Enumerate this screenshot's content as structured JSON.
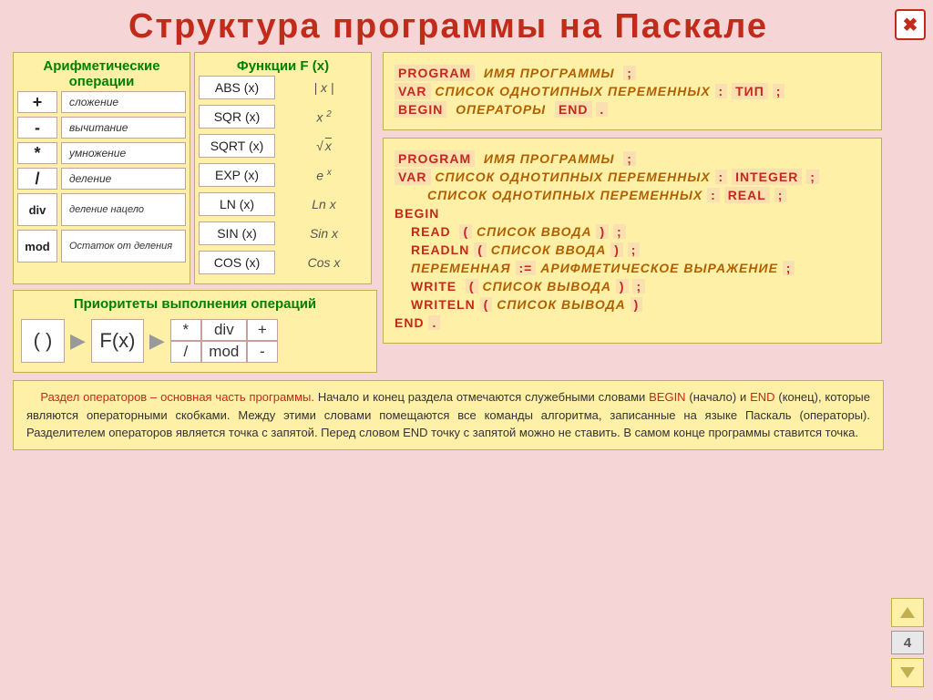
{
  "title": "Структура  программы  на  Паскале",
  "arith_head": "Арифметические операции",
  "funcs_head": "Функции  F (x)",
  "prio_head": "Приоритеты  выполнения  операций",
  "ops": [
    {
      "sym": "+",
      "desc": "сложение",
      "tall": false
    },
    {
      "sym": "-",
      "desc": "вычитание",
      "tall": false
    },
    {
      "sym": "*",
      "desc": "умножение",
      "tall": false
    },
    {
      "sym": "/",
      "desc": "деление",
      "tall": false
    },
    {
      "sym": "div",
      "desc": "деление нацело",
      "tall": true
    },
    {
      "sym": "mod",
      "desc": "Остаток от деления",
      "tall": true
    }
  ],
  "funcs": [
    {
      "name": "ABS (x)",
      "math": "| x |"
    },
    {
      "name": "SQR (x)",
      "math": "x <sup>2</sup>"
    },
    {
      "name": "SQRT (x)",
      "math": "√<span class='sqrt-sym'>x</span>"
    },
    {
      "name": "EXP (x)",
      "math": "e <sup>x</sup>"
    },
    {
      "name": "LN (x)",
      "math": "Ln x"
    },
    {
      "name": "SIN (x)",
      "math": "Sin x"
    },
    {
      "name": "COS (x)",
      "math": "Cos x"
    }
  ],
  "prio": {
    "b1": "( )",
    "b2": "F(x)",
    "grid": [
      "*",
      "div",
      "+",
      "/",
      "mod",
      "-"
    ]
  },
  "code1": {
    "l1": {
      "kw": "PROGRAM",
      "txt": "ИМЯ ПРОГРАММЫ",
      "p": ";"
    },
    "l2": {
      "kw": "VAR",
      "txt": "СПИСОК ОДНОТИПНЫХ ПЕРЕМЕННЫХ",
      "c": ":",
      "ty": "ТИП",
      "p": ";"
    },
    "l3": {
      "k1": "BEGIN",
      "txt": "ОПЕРАТОРЫ",
      "k2": "END",
      "p": "."
    }
  },
  "code2": {
    "l1": {
      "kw": "PROGRAM",
      "txt": "ИМЯ ПРОГРАММЫ",
      "p": ";"
    },
    "l2": {
      "kw": "VAR",
      "txt": "СПИСОК ОДНОТИПНЫХ ПЕРЕМЕННЫХ",
      "c": ":",
      "ty": "INTEGER",
      "p": ";"
    },
    "l3": {
      "txt": "СПИСОК ОДНОТИПНЫХ ПЕРЕМЕННЫХ",
      "c": ":",
      "ty": "REAL",
      "p": ";"
    },
    "begin": "BEGIN",
    "r1": {
      "kw": "READ",
      "o": "(",
      "txt": "СПИСОК ВВОДА",
      "cl": ")",
      "p": ";"
    },
    "r2": {
      "kw": "READLN",
      "o": "(",
      "txt": "СПИСОК ВВОДА",
      "cl": ")",
      "p": ";"
    },
    "as": {
      "v": "ПЕРЕМЕННАЯ",
      "op": ":=",
      "e": "АРИФМЕТИЧЕСКОЕ ВЫРАЖЕНИЕ",
      "p": ";"
    },
    "w1": {
      "kw": "WRITE",
      "o": "(",
      "txt": "СПИСОК ВЫВОДА",
      "cl": ")",
      "p": ";"
    },
    "w2": {
      "kw": "WRITELN",
      "o": "(",
      "txt": "СПИСОК ВЫВОДА",
      "cl": ")"
    },
    "end": "END",
    "endp": "."
  },
  "footer": {
    "t1": "Раздел  операторов – основная  часть  программы.",
    "t2": " Начало  и  конец  раздела  отмечаются  служебными словами ",
    "b": "BEGIN",
    "bp": " (начало)  и ",
    "e": "END",
    "ep": " (конец),  которые  являются  операторными скобками.  Между  этими словами  помещаются  все  команды  алгоритма,  записанные  на  языке  Паскаль  (операторы).  Разделителем  операторов  является  точка  с  запятой.  Перед  словом  END  точку  с  запятой  можно  не  ставить.  В  самом  конце  программы  ставится  точка."
  },
  "page": "4"
}
